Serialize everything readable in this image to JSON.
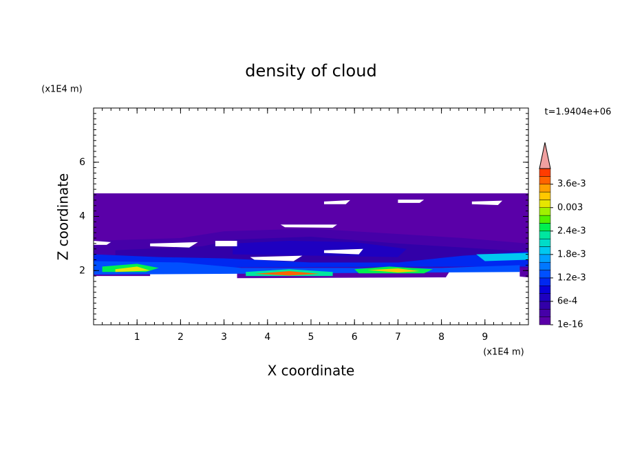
{
  "chart_data": {
    "type": "contour",
    "title": "density of cloud",
    "xlabel": "X coordinate",
    "ylabel": "Z coordinate",
    "xunit": "(x1E4 m)",
    "yunit": "(x1E4 m)",
    "annotation": "t=1.9404e+06",
    "xlim": [
      0,
      10
    ],
    "ylim": [
      0,
      8
    ],
    "xticks": [
      1,
      2,
      3,
      4,
      5,
      6,
      7,
      8,
      9
    ],
    "yticks": [
      2,
      4,
      6
    ],
    "levels": [
      1e-16,
      0.0002,
      0.0004,
      0.0006,
      0.0008,
      0.001,
      0.0012,
      0.0014,
      0.0016,
      0.0018,
      0.002,
      0.0022,
      0.0024,
      0.0026,
      0.0028,
      0.003,
      0.0032,
      0.0034,
      0.0036,
      0.0038,
      0.004
    ],
    "colors": [
      "#5a00a8",
      "#4600a8",
      "#3200a8",
      "#1e00c0",
      "#0a00d8",
      "#0028f0",
      "#0050ff",
      "#0078ff",
      "#00a0ff",
      "#00c8f0",
      "#00dcc8",
      "#00e6a0",
      "#00f050",
      "#50f000",
      "#a0f000",
      "#e6e600",
      "#ffc800",
      "#ffa000",
      "#ff6400",
      "#ff3c00",
      "#f0a0a0"
    ],
    "colorbar_ticks": [
      {
        "value": 1e-16,
        "label": "1e-16"
      },
      {
        "value": 0.0006,
        "label": "6e-4"
      },
      {
        "value": 0.0012,
        "label": "1.2e-3"
      },
      {
        "value": 0.0018,
        "label": "1.8e-3"
      },
      {
        "value": 0.0024,
        "label": "2.4e-3"
      },
      0.003,
      {
        "value": 0.0036,
        "label": "3.6e-3"
      }
    ]
  }
}
